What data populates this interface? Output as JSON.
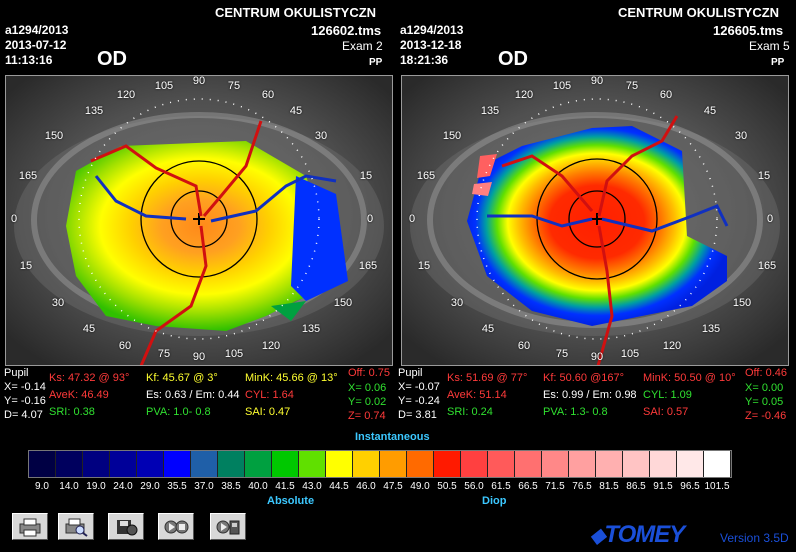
{
  "left": {
    "patient": "a1294/2013",
    "date": "2013-07-12",
    "time": "11:13:16",
    "clinic": "CENTRUM OKULISTYCZN",
    "file": "126602.tms",
    "exam": "Exam 2",
    "pp": "PP",
    "eye": "OD",
    "stats": {
      "pupil": "Pupil",
      "x": "X= -0.14",
      "y": "Y= -0.16",
      "d": "D= 4.07",
      "ks": "Ks: 47.32 @ 93°",
      "avek": "AveK: 46.49",
      "sri": "SRI: 0.38",
      "kf": "Kf: 45.67 @  3°",
      "es": "Es: 0.63 / Em: 0.44",
      "pva": "PVA:  1.0-  0.8",
      "mink": "MinK: 45.66 @ 13°",
      "cyl": "CYL: 1.64",
      "sai": "SAI: 0.47",
      "off": "Off: 0.75",
      "x2": "X= 0.06",
      "y2": "Y= 0.02",
      "z": "Z= 0.74"
    }
  },
  "right": {
    "patient": "a1294/2013",
    "date": "2013-12-18",
    "time": "18:21:36",
    "clinic": "CENTRUM OKULISTYCZN",
    "file": "126605.tms",
    "exam": "Exam 5",
    "pp": "PP",
    "eye": "OD",
    "stats": {
      "pupil": "Pupil",
      "x": "X= -0.07",
      "y": "Y= -0.24",
      "d": "D= 3.81",
      "ks": "Ks: 51.69 @ 77°",
      "avek": "AveK: 51.14",
      "sri": "SRI: 0.24",
      "kf": "Kf: 50.60 @167°",
      "es": "Es: 0.99 / Em: 0.98",
      "pva": "PVA:  1.3-  0.8",
      "mink": "MinK: 50.50 @ 10°",
      "cyl": "CYL: 1.09",
      "sai": "SAI: 0.57",
      "off": "Off: 0.46",
      "x2": "X= 0.00",
      "y2": "Y= 0.05",
      "z": "Z= -0.46"
    }
  },
  "dial_labels": [
    "0",
    "15",
    "30",
    "45",
    "60",
    "75",
    "90",
    "105",
    "120",
    "135",
    "150",
    "165",
    "0",
    "15",
    "30",
    "45",
    "60",
    "75",
    "90",
    "105",
    "120",
    "135",
    "150",
    "165"
  ],
  "scale_title": "Instantaneous",
  "scale_values": [
    "9.0",
    "14.0",
    "19.0",
    "24.0",
    "29.0",
    "35.5",
    "37.0",
    "38.5",
    "40.0",
    "41.5",
    "43.0",
    "44.5",
    "46.0",
    "47.5",
    "49.0",
    "50.5",
    "56.0",
    "61.5",
    "66.5",
    "71.5",
    "76.5",
    "81.5",
    "86.5",
    "91.5",
    "96.5",
    "101.5"
  ],
  "scale_colors": [
    "#000044",
    "#00005e",
    "#000080",
    "#000099",
    "#0000b4",
    "#0000ff",
    "#1f5fa8",
    "#008060",
    "#00a040",
    "#00c800",
    "#60e000",
    "#ffff00",
    "#ffd000",
    "#ff9c00",
    "#ff6a00",
    "#ff1a00",
    "#ff4040",
    "#ff5a5a",
    "#ff7070",
    "#ff8888",
    "#ffa0a0",
    "#ffb0b0",
    "#ffc4c4",
    "#ffd8d8",
    "#ffe8e8",
    "#ffffff"
  ],
  "footer": {
    "absolute": "Absolute",
    "diop": "Diop",
    "brand": "TOMEY",
    "version": "Version 3.5D"
  }
}
